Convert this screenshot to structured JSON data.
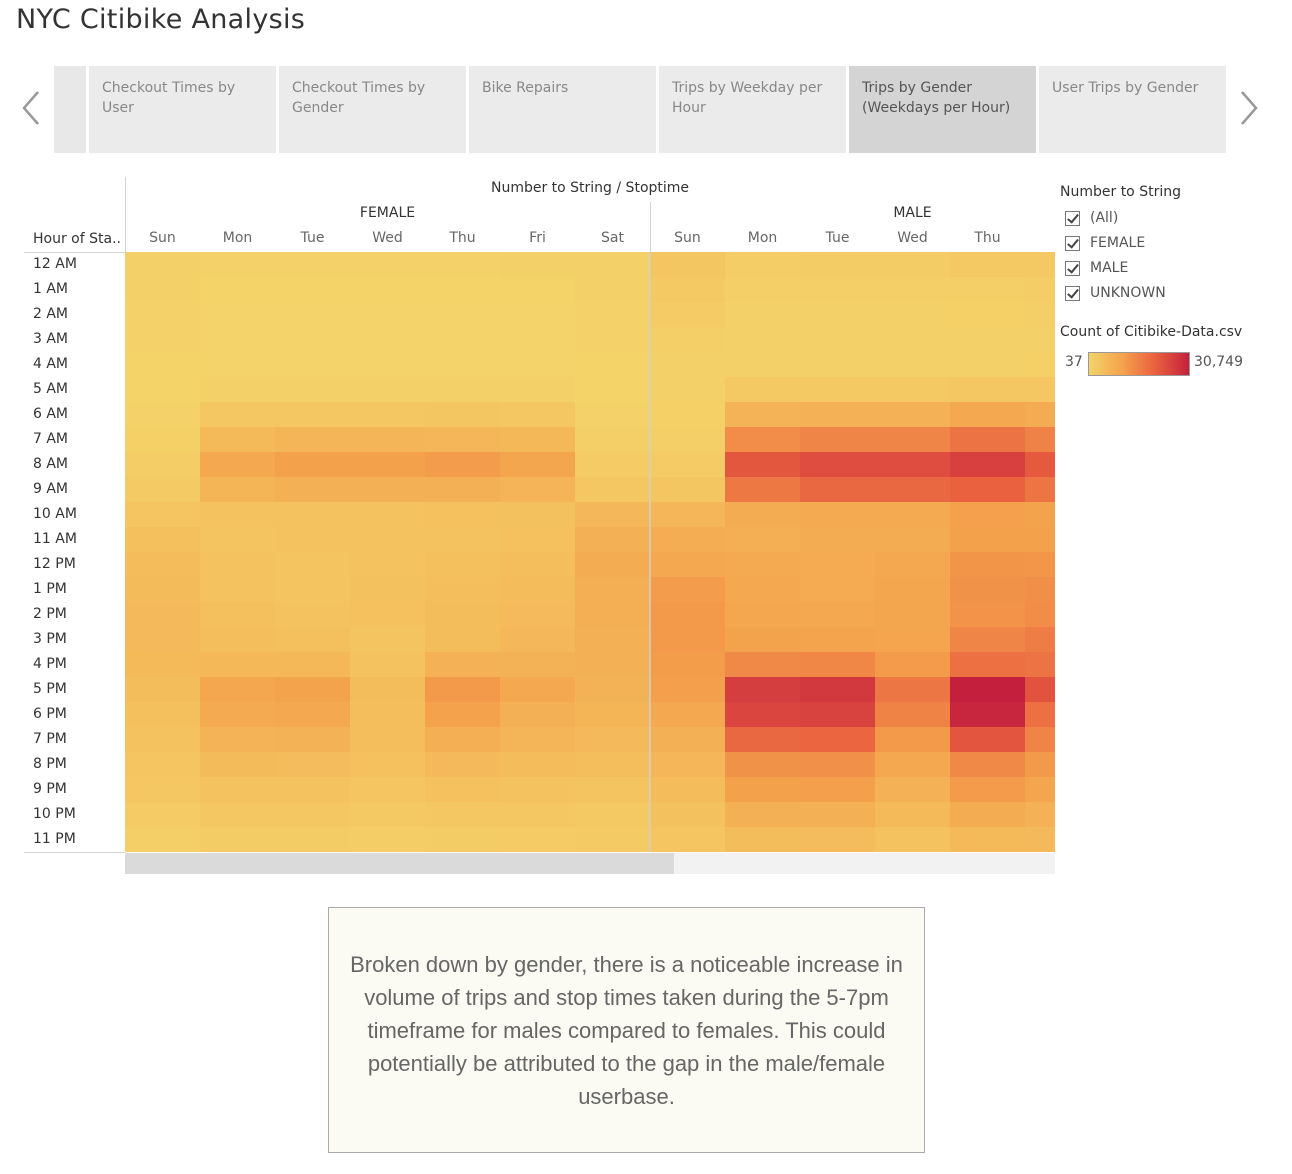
{
  "title": "NYC Citibike Analysis",
  "tabs": [
    {
      "label": "Checkout Times by User",
      "active": false
    },
    {
      "label": "Checkout Times by Gender",
      "active": false
    },
    {
      "label": "Bike Repairs",
      "active": false
    },
    {
      "label": "Trips by Weekday per Hour",
      "active": false
    },
    {
      "label": "Trips by Gender (Weekdays per Hour)",
      "active": true
    },
    {
      "label": "User Trips by Gender",
      "active": false
    }
  ],
  "nav": {
    "prev_icon": "chevron-left-icon",
    "next_icon": "chevron-right-icon"
  },
  "chart": {
    "column_header": "Number to String / Stoptime",
    "row_header": "Hour of Sta..",
    "groups": [
      "FEMALE",
      "MALE"
    ]
  },
  "filter": {
    "title": "Number to String",
    "options": [
      {
        "label": "(All)",
        "checked": true
      },
      {
        "label": "FEMALE",
        "checked": true
      },
      {
        "label": "MALE",
        "checked": true
      },
      {
        "label": "UNKNOWN",
        "checked": true
      }
    ]
  },
  "legend": {
    "title": "Count of Citibike-Data.csv",
    "min_label": "37",
    "max_label": "30,749",
    "min": 37,
    "max": 30749,
    "colors": [
      "#f4d46a",
      "#f4a24c",
      "#e9603f",
      "#c4203e"
    ]
  },
  "note": "Broken down by gender, there is a noticeable increase in volume of trips and stop times taken during the 5-7pm timeframe for males compared to females. This could potentially be attributed to the gap in the male/female userbase.",
  "chart_data": {
    "type": "heatmap",
    "title": "",
    "xlabel": "Number to String / Stoptime",
    "ylabel": "Hour of Sta..",
    "rows": [
      "12 AM",
      "1 AM",
      "2 AM",
      "3 AM",
      "4 AM",
      "5 AM",
      "6 AM",
      "7 AM",
      "8 AM",
      "9 AM",
      "10 AM",
      "11 AM",
      "12 PM",
      "1 PM",
      "2 PM",
      "3 PM",
      "4 PM",
      "5 PM",
      "6 PM",
      "7 PM",
      "8 PM",
      "9 PM",
      "10 PM",
      "11 PM"
    ],
    "columns": [
      {
        "group": "FEMALE",
        "day": "Sun"
      },
      {
        "group": "FEMALE",
        "day": "Mon"
      },
      {
        "group": "FEMALE",
        "day": "Tue"
      },
      {
        "group": "FEMALE",
        "day": "Wed"
      },
      {
        "group": "FEMALE",
        "day": "Thu"
      },
      {
        "group": "FEMALE",
        "day": "Fri"
      },
      {
        "group": "FEMALE",
        "day": "Sat"
      },
      {
        "group": "MALE",
        "day": "Sun"
      },
      {
        "group": "MALE",
        "day": "Mon"
      },
      {
        "group": "MALE",
        "day": "Tue"
      },
      {
        "group": "MALE",
        "day": "Wed"
      },
      {
        "group": "MALE",
        "day": "Thu"
      },
      {
        "group": "MALE",
        "day": ""
      }
    ],
    "values": [
      [
        800,
        500,
        500,
        500,
        500,
        600,
        700,
        3000,
        1500,
        1600,
        1700,
        2300,
        2400
      ],
      [
        600,
        300,
        300,
        300,
        300,
        300,
        600,
        2300,
        1100,
        1100,
        1100,
        1300,
        1500
      ],
      [
        500,
        200,
        200,
        200,
        200,
        200,
        500,
        1900,
        800,
        800,
        800,
        900,
        1100
      ],
      [
        400,
        200,
        200,
        200,
        200,
        200,
        400,
        1300,
        600,
        600,
        600,
        700,
        800
      ],
      [
        300,
        200,
        200,
        200,
        200,
        200,
        300,
        800,
        700,
        700,
        700,
        800,
        900
      ],
      [
        300,
        700,
        700,
        700,
        700,
        700,
        300,
        600,
        2200,
        2200,
        2200,
        2800,
        2600
      ],
      [
        500,
        2600,
        2800,
        2800,
        2900,
        2800,
        500,
        900,
        6800,
        7200,
        7200,
        8900,
        8200
      ],
      [
        900,
        5400,
        6300,
        6300,
        6200,
        5700,
        1100,
        1200,
        13500,
        14800,
        14800,
        17500,
        15200
      ],
      [
        1400,
        9100,
        10400,
        10400,
        11200,
        9500,
        1900,
        1900,
        22000,
        23500,
        23500,
        25600,
        21500
      ],
      [
        2100,
        6400,
        7400,
        7400,
        7500,
        6600,
        2800,
        3000,
        16800,
        19300,
        19300,
        20400,
        17200
      ],
      [
        3100,
        3500,
        3800,
        3800,
        4000,
        3900,
        5900,
        6200,
        8300,
        8700,
        8700,
        10600,
        10000
      ],
      [
        4200,
        3400,
        3600,
        3600,
        3800,
        4000,
        7400,
        8000,
        7800,
        8200,
        8200,
        10400,
        10500
      ],
      [
        5000,
        3600,
        3300,
        3800,
        4100,
        4600,
        8300,
        9000,
        8700,
        8400,
        9000,
        12300,
        12000
      ],
      [
        5200,
        3700,
        3300,
        3900,
        4500,
        5000,
        7900,
        11200,
        9000,
        8400,
        9400,
        12700,
        13200
      ],
      [
        5500,
        4100,
        3600,
        4000,
        4700,
        5300,
        7700,
        11500,
        9200,
        8900,
        9500,
        12600,
        13500
      ],
      [
        5500,
        4600,
        4200,
        3400,
        4700,
        5900,
        7500,
        11500,
        10100,
        9800,
        9600,
        14800,
        16000
      ],
      [
        5400,
        5800,
        5800,
        3700,
        7200,
        7000,
        7400,
        11000,
        14100,
        14400,
        11300,
        18000,
        17500
      ],
      [
        4800,
        9200,
        10100,
        4800,
        11500,
        8800,
        7000,
        10800,
        26000,
        26800,
        16900,
        30749,
        22600
      ],
      [
        4100,
        8700,
        9100,
        4500,
        10200,
        7500,
        6400,
        9000,
        24800,
        25200,
        15100,
        29800,
        18000
      ],
      [
        3700,
        6800,
        6900,
        4600,
        7700,
        6300,
        5600,
        7500,
        19200,
        19800,
        11500,
        22300,
        15000
      ],
      [
        3100,
        5100,
        4900,
        4000,
        5500,
        5000,
        4500,
        6100,
        12800,
        13000,
        9000,
        14200,
        11500
      ],
      [
        2600,
        3800,
        3700,
        3100,
        4000,
        3800,
        3400,
        5000,
        10500,
        10800,
        7300,
        11400,
        9500
      ],
      [
        1900,
        2700,
        2600,
        2300,
        2700,
        2600,
        2300,
        3900,
        7400,
        7500,
        5400,
        8200,
        7300
      ],
      [
        1300,
        1700,
        1600,
        1500,
        1700,
        1800,
        2000,
        3100,
        4800,
        4900,
        3700,
        5400,
        5600
      ]
    ]
  }
}
